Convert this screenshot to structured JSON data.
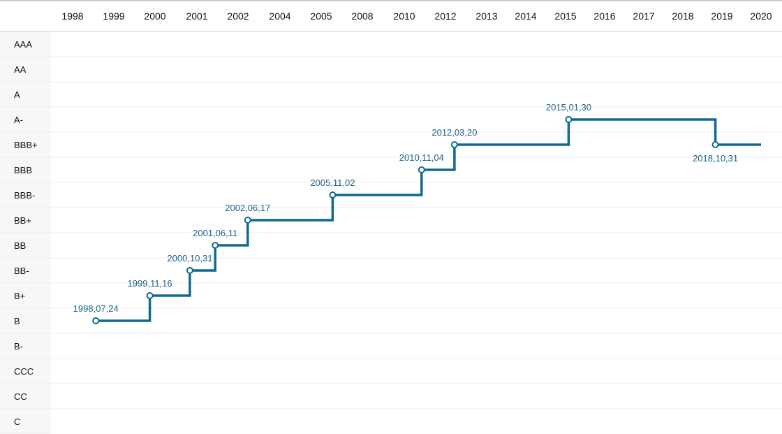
{
  "chart_data": {
    "type": "line",
    "step": true,
    "title": "",
    "x_axis_position": "top",
    "x_ticks": [
      "1998",
      "1999",
      "2000",
      "2001",
      "2002",
      "2004",
      "2005",
      "2008",
      "2010",
      "2012",
      "2013",
      "2014",
      "2015",
      "2016",
      "2017",
      "2018",
      "2019",
      "2020"
    ],
    "y_categories": [
      "AAA",
      "AA",
      "A",
      "A-",
      "BBB+",
      "BBB",
      "BBB-",
      "BB+",
      "BB",
      "BB-",
      "B+",
      "B",
      "B-",
      "CCC",
      "CC",
      "C"
    ],
    "series": [
      {
        "points": [
          {
            "x": "1998.07.24",
            "y": "B"
          },
          {
            "x": "1999.11.16",
            "y": "B+"
          },
          {
            "x": "2000.10.31",
            "y": "BB-"
          },
          {
            "x": "2001.06.11",
            "y": "BB"
          },
          {
            "x": "2002.06.17",
            "y": "BB+"
          },
          {
            "x": "2005.11.02",
            "y": "BBB-"
          },
          {
            "x": "2010.11.04",
            "y": "BBB"
          },
          {
            "x": "2012.03.20",
            "y": "BBB+"
          },
          {
            "x": "2015.01.30",
            "y": "A-"
          },
          {
            "x": "2018.10.31",
            "y": "BBB+"
          }
        ],
        "labels": [
          "1998,07,24",
          "1999,11,16",
          "2000,10,31",
          "2001,06,11",
          "2002,06,17",
          "2005,11,02",
          "2010,11,04",
          "2012,03,20",
          "2015,01,30",
          "2018,10,31"
        ],
        "label_side": [
          "above",
          "above",
          "above",
          "above",
          "above",
          "above",
          "above",
          "above",
          "above",
          "below"
        ],
        "extends_to": "2020"
      }
    ],
    "colors": {
      "line": "#0f6a8f",
      "label": "#1c6188",
      "grid": "#ececec",
      "axis": "#cccccc",
      "label_column_bg": "#f7f7f7"
    },
    "grid": true
  }
}
